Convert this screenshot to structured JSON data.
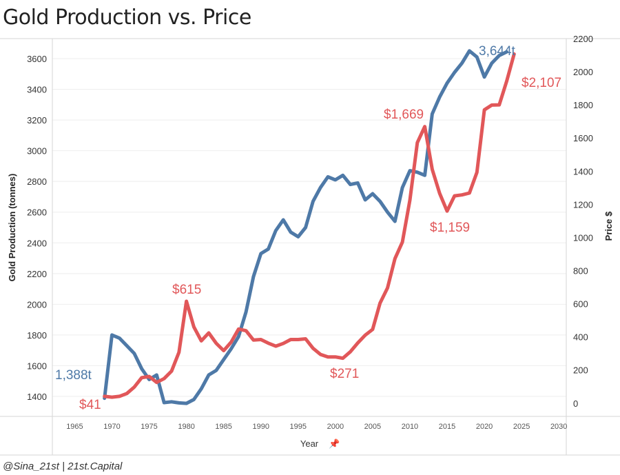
{
  "page": {
    "title": "Gold Production vs. Price",
    "credit": "@Sina_21st | 21st.Capital"
  },
  "chart_data": {
    "type": "line",
    "xlabel": "Year",
    "xlabel_pin": "📌",
    "ylabel_left": "Gold Production (tonnes)",
    "ylabel_right": "Price $",
    "xlim": [
      1962,
      2031
    ],
    "ylim_left": [
      1270,
      3730
    ],
    "ylim_right": [
      -80,
      2200
    ],
    "x_ticks": [
      1965,
      1970,
      1975,
      1980,
      1985,
      1990,
      1995,
      2000,
      2005,
      2010,
      2015,
      2020,
      2025,
      2030
    ],
    "y_ticks_left": [
      1400,
      1600,
      1800,
      2000,
      2200,
      2400,
      2600,
      2800,
      3000,
      3200,
      3400,
      3600
    ],
    "y_ticks_right": [
      0,
      200,
      400,
      600,
      800,
      1000,
      1200,
      1400,
      1600,
      1800,
      2000,
      2200
    ],
    "colors": {
      "production": "#4e79a7",
      "price": "#e15759"
    },
    "series": [
      {
        "key": "production",
        "axis": "left",
        "x": [
          1969,
          1970,
          1971,
          1972,
          1973,
          1974,
          1975,
          1976,
          1977,
          1978,
          1979,
          1980,
          1981,
          1982,
          1983,
          1984,
          1985,
          1986,
          1987,
          1988,
          1989,
          1990,
          1991,
          1992,
          1993,
          1994,
          1995,
          1996,
          1997,
          1998,
          1999,
          2000,
          2001,
          2002,
          2003,
          2004,
          2005,
          2006,
          2007,
          2008,
          2009,
          2010,
          2011,
          2012,
          2013,
          2014,
          2015,
          2016,
          2017,
          2018,
          2019,
          2020,
          2021,
          2022,
          2023
        ],
        "values": [
          1388,
          1800,
          1780,
          1730,
          1680,
          1580,
          1510,
          1540,
          1360,
          1365,
          1358,
          1355,
          1380,
          1450,
          1540,
          1570,
          1640,
          1710,
          1790,
          1950,
          2180,
          2330,
          2360,
          2480,
          2550,
          2470,
          2440,
          2500,
          2670,
          2760,
          2830,
          2810,
          2840,
          2780,
          2790,
          2680,
          2720,
          2670,
          2600,
          2540,
          2760,
          2870,
          2860,
          2840,
          3240,
          3350,
          3440,
          3510,
          3570,
          3650,
          3610,
          3480,
          3570,
          3620,
          3644
        ]
      },
      {
        "key": "price",
        "axis": "right",
        "x": [
          1969,
          1970,
          1971,
          1972,
          1973,
          1974,
          1975,
          1976,
          1977,
          1978,
          1979,
          1980,
          1981,
          1982,
          1983,
          1984,
          1985,
          1986,
          1987,
          1988,
          1989,
          1990,
          1991,
          1992,
          1993,
          1994,
          1995,
          1996,
          1997,
          1998,
          1999,
          2000,
          2001,
          2002,
          2003,
          2004,
          2005,
          2006,
          2007,
          2008,
          2009,
          2010,
          2011,
          2012,
          2013,
          2014,
          2015,
          2016,
          2017,
          2018,
          2019,
          2020,
          2021,
          2022,
          2023,
          2024
        ],
        "values": [
          41,
          36,
          41,
          58,
          97,
          154,
          161,
          125,
          148,
          193,
          307,
          615,
          460,
          376,
          424,
          361,
          317,
          368,
          447,
          437,
          381,
          384,
          362,
          344,
          360,
          384,
          384,
          388,
          331,
          294,
          279,
          279,
          271,
          310,
          363,
          410,
          445,
          604,
          695,
          872,
          972,
          1225,
          1572,
          1669,
          1411,
          1266,
          1159,
          1251,
          1257,
          1268,
          1393,
          1770,
          1799,
          1800,
          1943,
          2107
        ]
      }
    ],
    "annotations": {
      "prod_start": "1,388t",
      "prod_end": "3,644t",
      "price_start": "$41",
      "price_1980": "$615",
      "price_2001": "$271",
      "price_2012": "$1,669",
      "price_2015": "$1,159",
      "price_end": "$2,107"
    }
  }
}
